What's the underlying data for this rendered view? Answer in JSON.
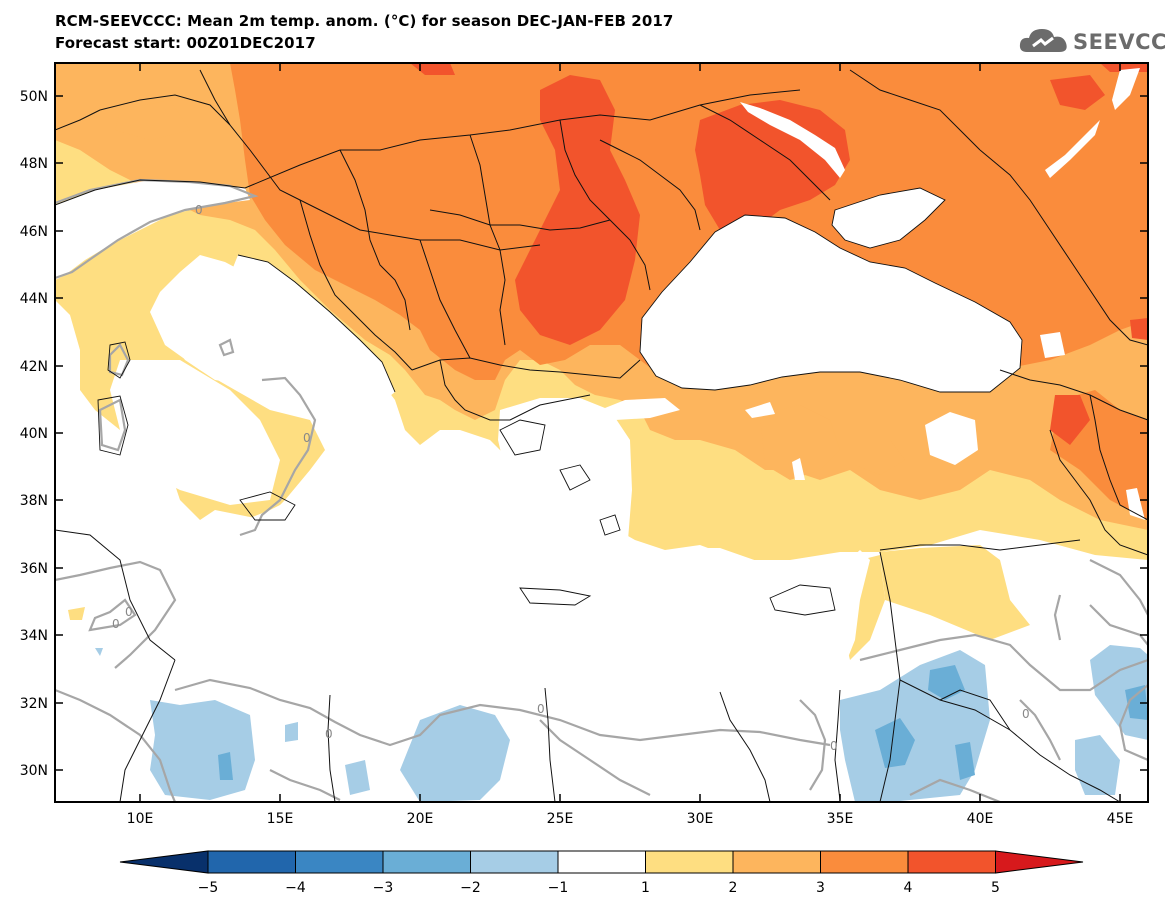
{
  "title_line1": "RCM-SEEVCCC: Mean 2m temp. anom. (°C) for season DEC-JAN-FEB 2017",
  "title_line2": "Forecast start: 00Z01DEC2017",
  "logo_text": "SEEVCCC",
  "logo_icon": "cloud-icon",
  "map": {
    "lat_labels": [
      "50N",
      "48N",
      "46N",
      "44N",
      "42N",
      "40N",
      "38N",
      "36N",
      "34N",
      "32N",
      "30N"
    ],
    "lon_labels": [
      "10E",
      "15E",
      "20E",
      "25E",
      "30E",
      "35E",
      "40E",
      "45E"
    ],
    "contour_label": "0",
    "colorbar_ticks": [
      "−5",
      "−4",
      "−3",
      "−2",
      "−1",
      "1",
      "2",
      "3",
      "4",
      "5"
    ],
    "colorbar_colors": [
      "#2166ac",
      "#3a86c3",
      "#6aaed6",
      "#a6cde6",
      "#ffffff",
      "#fede81",
      "#fdb55d",
      "#fa8c3c",
      "#f2542c",
      "#d7191c",
      "#08306b"
    ]
  }
}
